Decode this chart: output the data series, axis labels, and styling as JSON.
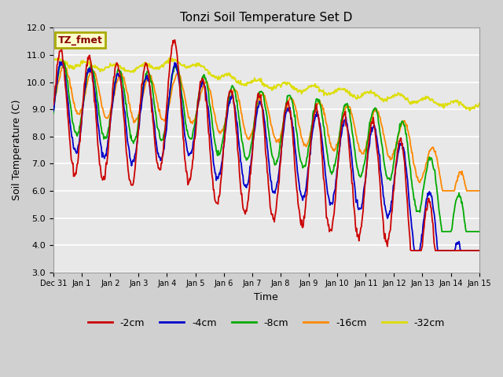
{
  "title": "Tonzi Soil Temperature Set D",
  "xlabel": "Time",
  "ylabel": "Soil Temperature (C)",
  "ylim": [
    3.0,
    12.0
  ],
  "yticks": [
    3.0,
    4.0,
    5.0,
    6.0,
    7.0,
    8.0,
    9.0,
    10.0,
    11.0,
    12.0
  ],
  "colors": {
    "-2cm": "#cc0000",
    "-4cm": "#0000cc",
    "-8cm": "#00aa00",
    "-16cm": "#ff8800",
    "-32cm": "#dddd00"
  },
  "annotation_text": "TZ_fmet",
  "xtick_labels": [
    "Dec 31",
    "Jan 1",
    "Jan 2",
    "Jan 3",
    "Jan 4",
    "Jan 5",
    "Jan 6",
    "Jan 7",
    "Jan 8",
    "Jan 9",
    "Jan 10",
    "Jan 11",
    "Jan 12",
    "Jan 13",
    "Jan 14",
    "Jan 15"
  ],
  "figsize": [
    6.4,
    4.8
  ],
  "dpi": 100
}
